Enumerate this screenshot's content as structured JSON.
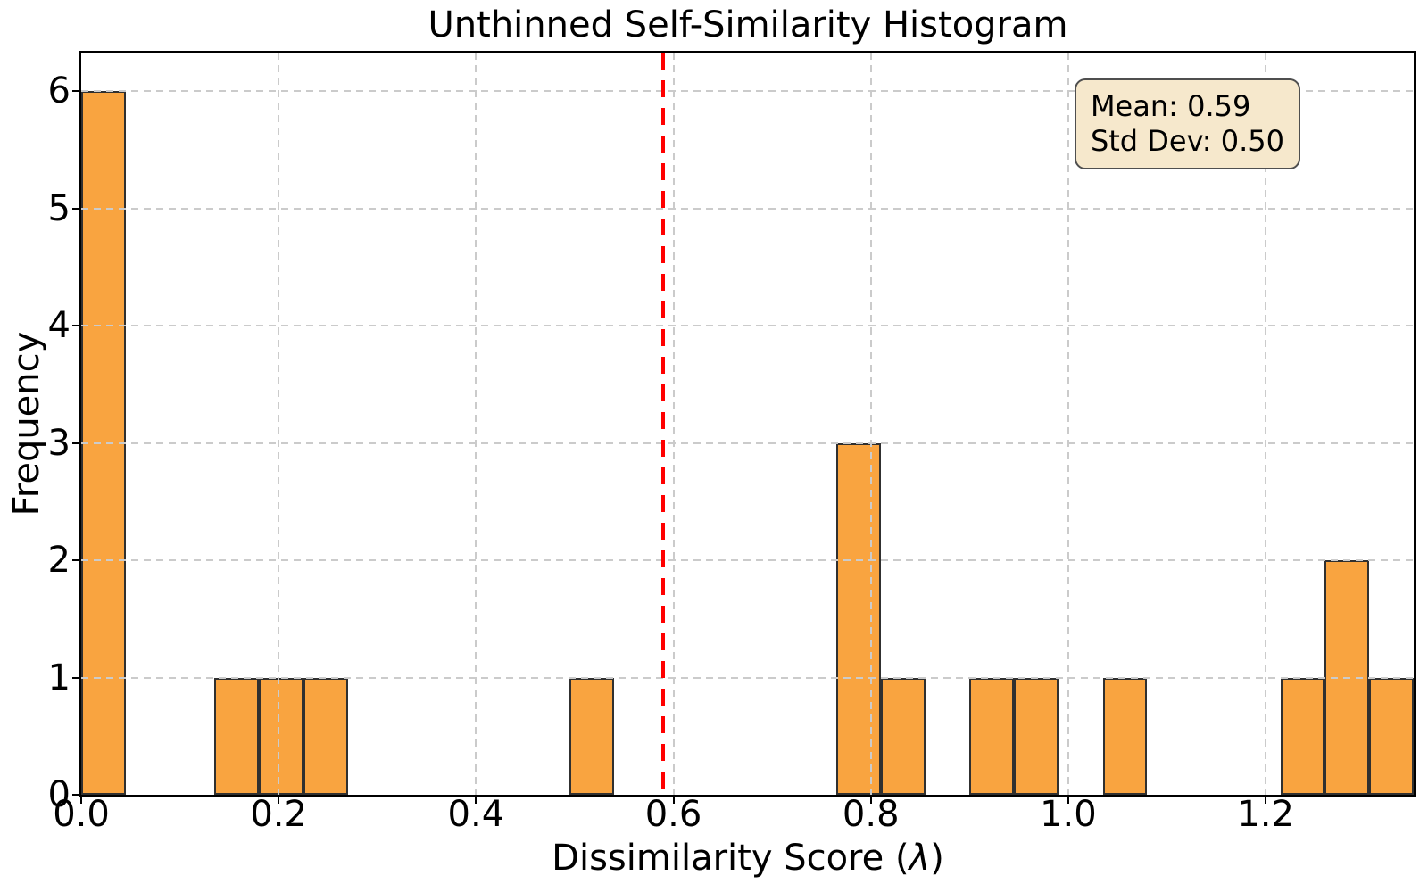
{
  "chart_data": {
    "type": "bar",
    "subtype": "histogram",
    "title": "Unthinned Self-Similarity Histogram",
    "xlabel": "Dissimilarity Score (λ)",
    "xlabel_parts": {
      "prefix": "Dissimilarity Score (",
      "lambda": "λ",
      "suffix": ")"
    },
    "ylabel": "Frequency",
    "xlim": [
      0,
      1.35
    ],
    "ylim": [
      0,
      6.33
    ],
    "grid": true,
    "bin_width": 0.045,
    "bins": [
      {
        "x0": 0.0,
        "x1": 0.045,
        "count": 6
      },
      {
        "x0": 0.135,
        "x1": 0.18,
        "count": 1
      },
      {
        "x0": 0.18,
        "x1": 0.225,
        "count": 1
      },
      {
        "x0": 0.225,
        "x1": 0.27,
        "count": 1
      },
      {
        "x0": 0.495,
        "x1": 0.54,
        "count": 1
      },
      {
        "x0": 0.765,
        "x1": 0.81,
        "count": 3
      },
      {
        "x0": 0.81,
        "x1": 0.855,
        "count": 1
      },
      {
        "x0": 0.9,
        "x1": 0.945,
        "count": 1
      },
      {
        "x0": 0.945,
        "x1": 0.99,
        "count": 1
      },
      {
        "x0": 1.035,
        "x1": 1.08,
        "count": 1
      },
      {
        "x0": 1.215,
        "x1": 1.26,
        "count": 1
      },
      {
        "x0": 1.26,
        "x1": 1.305,
        "count": 2
      },
      {
        "x0": 1.305,
        "x1": 1.35,
        "count": 1
      }
    ],
    "x_ticks": [
      {
        "value": 0.0,
        "label": "0.0"
      },
      {
        "value": 0.2,
        "label": "0.2"
      },
      {
        "value": 0.4,
        "label": "0.4"
      },
      {
        "value": 0.6,
        "label": "0.6"
      },
      {
        "value": 0.8,
        "label": "0.8"
      },
      {
        "value": 1.0,
        "label": "1.0"
      },
      {
        "value": 1.2,
        "label": "1.2"
      }
    ],
    "y_ticks": [
      {
        "value": 0,
        "label": "0"
      },
      {
        "value": 1,
        "label": "1"
      },
      {
        "value": 2,
        "label": "2"
      },
      {
        "value": 3,
        "label": "3"
      },
      {
        "value": 4,
        "label": "4"
      },
      {
        "value": 5,
        "label": "5"
      },
      {
        "value": 6,
        "label": "6"
      }
    ],
    "mean_line": {
      "x": 0.59,
      "style": "dashed"
    },
    "stats": {
      "mean": 0.59,
      "std_dev": 0.5
    },
    "annotation": {
      "line1": "Mean: 0.59",
      "line2": "Std Dev: 0.50"
    },
    "colors": {
      "bar_fill": "#F9A440",
      "bar_edge": "#303030",
      "grid": "#CBCBCB",
      "mean_line": "#FF0000",
      "annotation_bg": "#F6E8CC",
      "annotation_border": "#4F4F4F",
      "spine": "#000000",
      "text": "#000000"
    }
  }
}
